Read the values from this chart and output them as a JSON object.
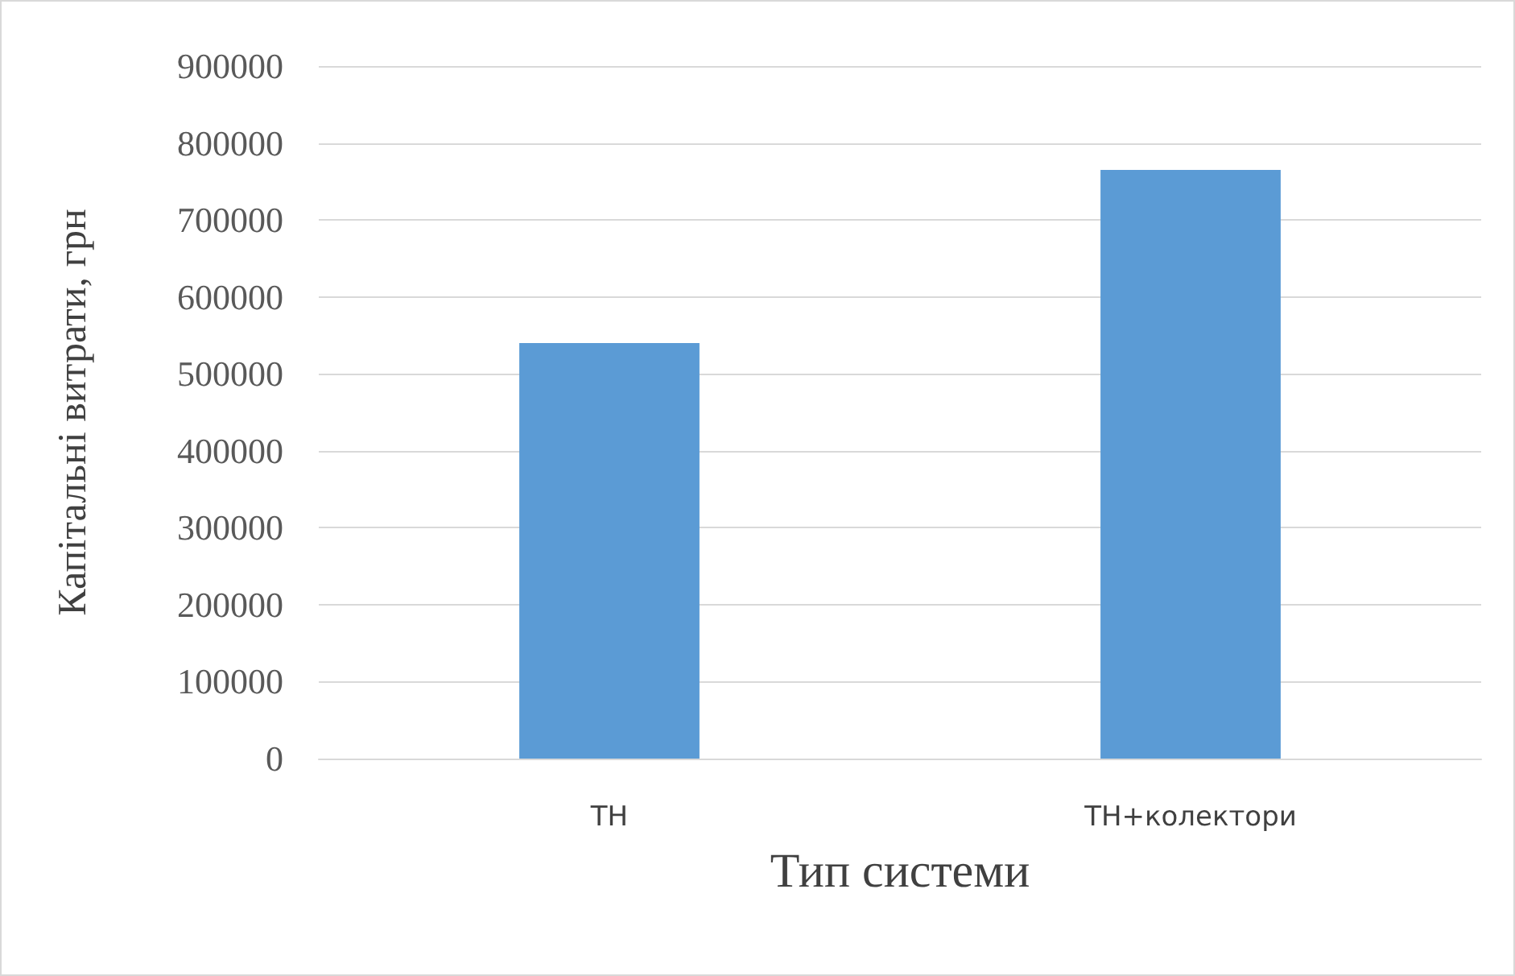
{
  "chart_data": {
    "type": "bar",
    "xlabel": "Тип системи",
    "ylabel": "Капітальні витрати, грн",
    "categories": [
      "ТН",
      "ТН+колектори"
    ],
    "values": [
      540000,
      765000
    ],
    "color": "#5b9bd5",
    "ylim": [
      0,
      900000
    ],
    "yticks": [
      0,
      100000,
      200000,
      300000,
      400000,
      500000,
      600000,
      700000,
      800000,
      900000
    ],
    "grid": "y"
  }
}
